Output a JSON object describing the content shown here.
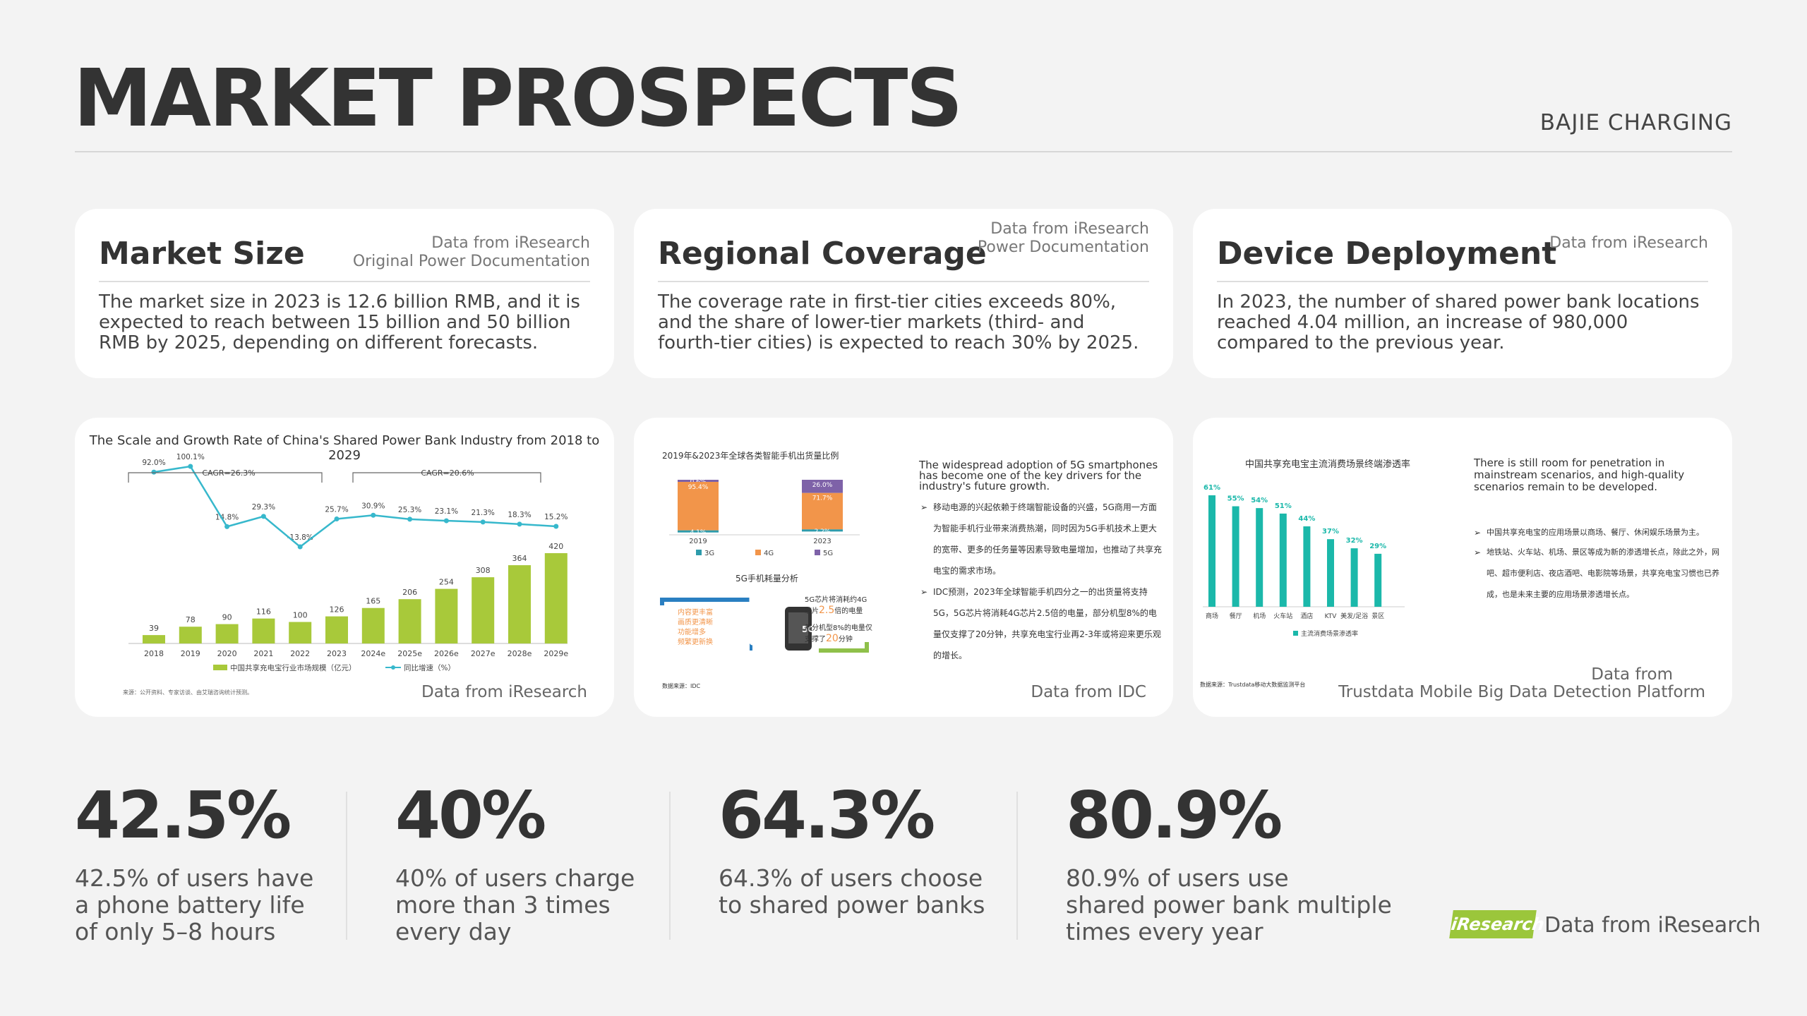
{
  "header": {
    "title": "MARKET PROSPECTS",
    "brand": "BAJIE CHARGING"
  },
  "cards": [
    {
      "title": "Market Size",
      "source": [
        "Data from iResearch",
        "Original Power Documentation"
      ],
      "text": "The market size in 2023 is 12.6 billion RMB, and it is expected to reach between 15 billion and 50 billion RMB by 2025, depending on different forecasts."
    },
    {
      "title": "Regional Coverage",
      "source": [
        "Data from iResearch",
        "Power Documentation"
      ],
      "text": "The coverage rate in first-tier cities exceeds 80%, and the share of lower-tier markets (third- and fourth-tier cities) is expected to reach 30% by 2025."
    },
    {
      "title": "Device Deployment",
      "source": [
        "Data from iResearch"
      ],
      "text": "In 2023, the number of shared power bank locations reached 4.04 million, an increase of 980,000 compared to the previous year."
    }
  ],
  "images": [
    {
      "source": [
        "Data from iResearch"
      ]
    },
    {
      "source": [
        "Data from IDC"
      ]
    },
    {
      "source": [
        "Data from",
        "Trustdata Mobile Big Data Detection Platform"
      ]
    }
  ],
  "chart_data": [
    {
      "type": "bar",
      "title": "The Scale and Growth Rate of China's Shared Power Bank Industry from 2018 to 2029",
      "categories": [
        "2018",
        "2019",
        "2020",
        "2021",
        "2022",
        "2023",
        "2024e",
        "2025e",
        "2026e",
        "2027e",
        "2028e",
        "2029e"
      ],
      "series": [
        {
          "name": "中国共享充电宝行业市场规模（亿元）",
          "type": "bar",
          "values": [
            39,
            78,
            90,
            116,
            100,
            126,
            165,
            206,
            254,
            308,
            364,
            420
          ]
        },
        {
          "name": "同比增速（%）",
          "type": "line",
          "values": [
            92.0,
            100.1,
            14.8,
            29.3,
            -13.8,
            25.7,
            30.9,
            25.3,
            23.1,
            21.3,
            18.3,
            15.2
          ]
        }
      ],
      "annotations": [
        "CAGR=26.3%",
        "CAGR=20.6%"
      ],
      "footnote": "来源：公开资料、专家访谈、由艾瑞咨询统计预测。",
      "colors": {
        "bar": "#a8c93a",
        "line": "#37b8cc"
      }
    },
    {
      "type": "bar",
      "title": "2019年&2023年全球各类智能手机出货量比例",
      "categories": [
        "2019",
        "2023"
      ],
      "series": [
        {
          "name": "3G",
          "values": [
            4.1,
            2.2
          ]
        },
        {
          "name": "4G",
          "values": [
            95.4,
            71.7
          ]
        },
        {
          "name": "5G",
          "values": [
            0.6,
            26.0
          ]
        }
      ],
      "colors": {
        "3G": "#2e9bab",
        "4G": "#f2954a",
        "5G": "#7e62a8"
      }
    },
    {
      "type": "bar",
      "title": "中国共享充电宝主流消费场景终端渗透率",
      "categories": [
        "商场",
        "餐厅",
        "机场",
        "火车站",
        "酒店",
        "KTV",
        "美发/足浴",
        "景区"
      ],
      "values": [
        61,
        55,
        54,
        51,
        44,
        37,
        32,
        29
      ],
      "legend": "主流消费场景渗透率",
      "footnote": "数据来源：Trustdata移动大数据监测平台",
      "colors": {
        "bar": "#1bb8aa"
      }
    }
  ],
  "idc_panel": {
    "lead": "The widespread adoption of 5G smartphones has become one of the key drivers for the industry's future growth.",
    "bullets": [
      "移动电源的兴起依赖于终端智能设备的兴盛，5G商用一方面为智能手机行业带来消费热潮，同时因为5G手机技术上更大的宽带、更多的任务量等因素导致电量增加，也推动了共享充电宝的需求市场。",
      "IDC预测，2023年全球智能手机四分之一的出货量将支持5G，5G芯片将消耗4G芯片2.5倍的电量，部分机型8%的电量仅支撑了20分钟，共享充电宝行业再2-3年或将迎来更乐观的增长。"
    ],
    "diagram_title": "5G手机耗量分析",
    "diagram_left": [
      "内容更丰富",
      "画质更清晰",
      "功能增多",
      "频繁更新换"
    ],
    "diagram_center": "5G",
    "diagram_right_1": [
      "5G芯片将消耗约4G",
      "芯片",
      "2.5",
      "倍的电量"
    ],
    "diagram_right_2": [
      "部分机型8%的电量仅",
      "支撑了",
      "20",
      "分钟"
    ],
    "footnote": "数据来源：IDC"
  },
  "scene_panel": {
    "lead": "There is still room for penetration in mainstream scenarios, and high-quality scenarios remain to be developed.",
    "bullets": [
      "中国共享充电宝的应用场景以商场、餐厅、休闲娱乐场景为主。",
      "地铁站、火车站、机场、景区等成为新的渗透增长点，除此之外，网吧、超市便利店、夜店酒吧、电影院等场景，共享充电宝习惯也已养成，也是未来主要的应用场景渗透增长点。"
    ]
  },
  "stats": [
    {
      "value": "42.5%",
      "desc": [
        "42.5% of users have",
        "a phone battery life",
        "of only 5–8 hours"
      ]
    },
    {
      "value": "40%",
      "desc": [
        "40% of users charge",
        "more than 3 times",
        "every day"
      ]
    },
    {
      "value": "64.3%",
      "desc": [
        "64.3% of users choose",
        "to shared power banks"
      ]
    },
    {
      "value": "80.9%",
      "desc": [
        "80.9% of users use",
        "shared power bank multiple",
        "times every year"
      ]
    }
  ],
  "footer": {
    "logo": "iResearch",
    "text": "Data from iResearch"
  }
}
